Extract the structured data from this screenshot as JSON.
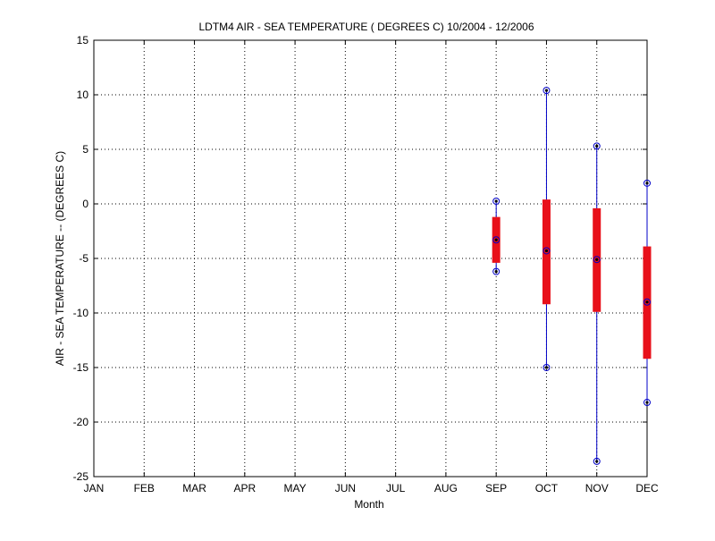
{
  "chart_data": {
    "type": "box",
    "title": "LDTM4  AIR - SEA TEMPERATURE ( DEGREES C) 10/2004 - 12/2006",
    "xlabel": "Month",
    "ylabel": "AIR - SEA TEMPERATURE -- (DEGREES C)",
    "ylim": [
      -25,
      15
    ],
    "yticks": [
      -25,
      -20,
      -15,
      -10,
      -5,
      0,
      5,
      10,
      15
    ],
    "grid": true,
    "categories": [
      "JAN",
      "FEB",
      "MAR",
      "APR",
      "MAY",
      "JUN",
      "JUL",
      "AUG",
      "SEP",
      "OCT",
      "NOV",
      "DEC"
    ],
    "series": [
      {
        "month": "SEP",
        "min": -6.2,
        "q1": -5.4,
        "median": -3.3,
        "q3": -1.2,
        "max": 0.25
      },
      {
        "month": "OCT",
        "min": -15.0,
        "q1": -9.2,
        "median": -4.3,
        "q3": 0.4,
        "max": 10.4
      },
      {
        "month": "NOV",
        "min": -23.6,
        "q1": -9.9,
        "median": -5.1,
        "q3": -0.4,
        "max": 5.3
      },
      {
        "month": "DEC",
        "min": -18.2,
        "q1": -14.2,
        "median": -9.0,
        "q3": -3.9,
        "max": 1.9
      }
    ],
    "colors": {
      "box": "#e8101a",
      "whisker": "#0000c8",
      "marker": "#0000c8",
      "dot": "#000000"
    }
  }
}
